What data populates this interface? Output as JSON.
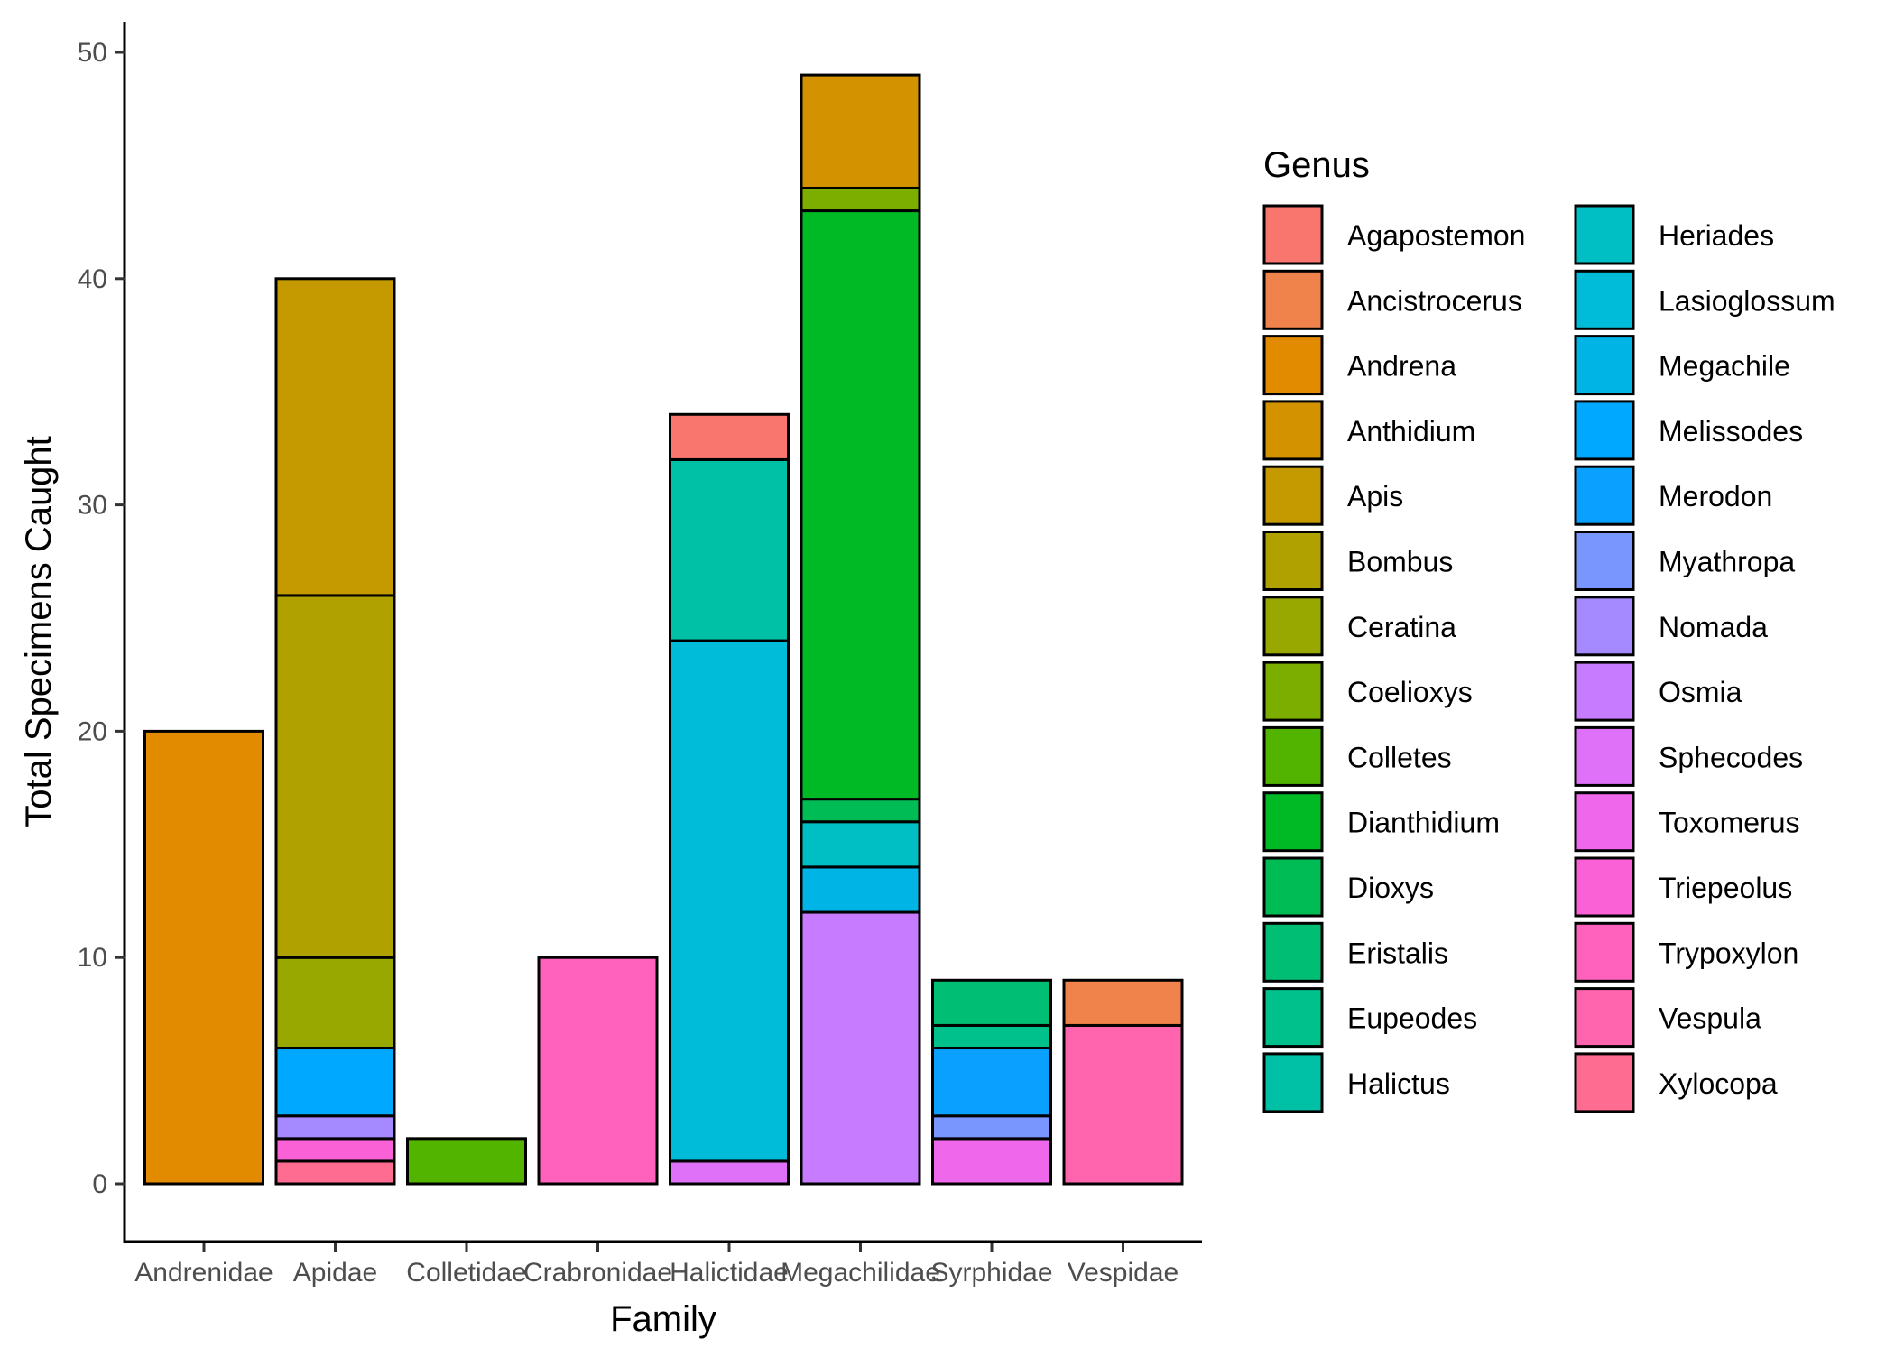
{
  "chart_data": {
    "type": "bar",
    "stacked": true,
    "xlabel": "Family",
    "ylabel": "Total Specimens Caught",
    "ylim": [
      0,
      52
    ],
    "yticks": [
      0,
      10,
      20,
      30,
      40,
      50
    ],
    "grid": false,
    "legend_position": "right",
    "legend_title": "Genus",
    "categories": [
      "Andrenidae",
      "Apidae",
      "Colletidae",
      "Crabronidae",
      "Halictidae",
      "Megachilidae",
      "Syrphidae",
      "Vespidae"
    ],
    "genera": [
      {
        "name": "Agapostemon",
        "color": "#F8766D"
      },
      {
        "name": "Ancistrocerus",
        "color": "#F0824B"
      },
      {
        "name": "Andrena",
        "color": "#E28A00"
      },
      {
        "name": "Anthidium",
        "color": "#D39200"
      },
      {
        "name": "Apis",
        "color": "#C49A00"
      },
      {
        "name": "Bombus",
        "color": "#B0A100"
      },
      {
        "name": "Ceratina",
        "color": "#99A800"
      },
      {
        "name": "Coelioxys",
        "color": "#7CAE00"
      },
      {
        "name": "Colletes",
        "color": "#53B400"
      },
      {
        "name": "Dianthidium",
        "color": "#00BA25"
      },
      {
        "name": "Dioxys",
        "color": "#00BC55"
      },
      {
        "name": "Eristalis",
        "color": "#00BE74"
      },
      {
        "name": "Eupeodes",
        "color": "#00C08B"
      },
      {
        "name": "Halictus",
        "color": "#00C0A5"
      },
      {
        "name": "Heriades",
        "color": "#00BFC4"
      },
      {
        "name": "Lasioglossum",
        "color": "#00BCD8"
      },
      {
        "name": "Megachile",
        "color": "#00B4E6"
      },
      {
        "name": "Melissodes",
        "color": "#00A9FF"
      },
      {
        "name": "Merodon",
        "color": "#0AA0FF"
      },
      {
        "name": "Myathropa",
        "color": "#7996FF"
      },
      {
        "name": "Nomada",
        "color": "#A58AFF"
      },
      {
        "name": "Osmia",
        "color": "#C77CFF"
      },
      {
        "name": "Sphecodes",
        "color": "#DF70F8"
      },
      {
        "name": "Toxomerus",
        "color": "#EF67EB"
      },
      {
        "name": "Triepeolus",
        "color": "#FB61D7"
      },
      {
        "name": "Trypoxylon",
        "color": "#FF62BC"
      },
      {
        "name": "Vespula",
        "color": "#FF65AE"
      },
      {
        "name": "Xylocopa",
        "color": "#FF6C91"
      }
    ],
    "stacks": [
      {
        "category": "Andrenidae",
        "segments": [
          {
            "genus": "Andrena",
            "value": 20
          }
        ]
      },
      {
        "category": "Apidae",
        "segments": [
          {
            "genus": "Xylocopa",
            "value": 1
          },
          {
            "genus": "Triepeolus",
            "value": 1
          },
          {
            "genus": "Nomada",
            "value": 1
          },
          {
            "genus": "Melissodes",
            "value": 3
          },
          {
            "genus": "Ceratina",
            "value": 4
          },
          {
            "genus": "Bombus",
            "value": 16
          },
          {
            "genus": "Apis",
            "value": 14
          }
        ]
      },
      {
        "category": "Colletidae",
        "segments": [
          {
            "genus": "Colletes",
            "value": 2
          }
        ]
      },
      {
        "category": "Crabronidae",
        "segments": [
          {
            "genus": "Trypoxylon",
            "value": 10
          }
        ]
      },
      {
        "category": "Halictidae",
        "segments": [
          {
            "genus": "Sphecodes",
            "value": 1
          },
          {
            "genus": "Lasioglossum",
            "value": 23
          },
          {
            "genus": "Halictus",
            "value": 8
          },
          {
            "genus": "Agapostemon",
            "value": 2
          }
        ]
      },
      {
        "category": "Megachilidae",
        "segments": [
          {
            "genus": "Osmia",
            "value": 12
          },
          {
            "genus": "Megachile",
            "value": 2
          },
          {
            "genus": "Heriades",
            "value": 2
          },
          {
            "genus": "Dioxys",
            "value": 1
          },
          {
            "genus": "Dianthidium",
            "value": 26
          },
          {
            "genus": "Coelioxys",
            "value": 1
          },
          {
            "genus": "Anthidium",
            "value": 5
          }
        ]
      },
      {
        "category": "Syrphidae",
        "segments": [
          {
            "genus": "Toxomerus",
            "value": 2
          },
          {
            "genus": "Myathropa",
            "value": 1
          },
          {
            "genus": "Merodon",
            "value": 3
          },
          {
            "genus": "Eupeodes",
            "value": 1
          },
          {
            "genus": "Eristalis",
            "value": 2
          }
        ]
      },
      {
        "category": "Vespidae",
        "segments": [
          {
            "genus": "Vespula",
            "value": 7
          },
          {
            "genus": "Ancistrocerus",
            "value": 2
          }
        ]
      }
    ]
  }
}
